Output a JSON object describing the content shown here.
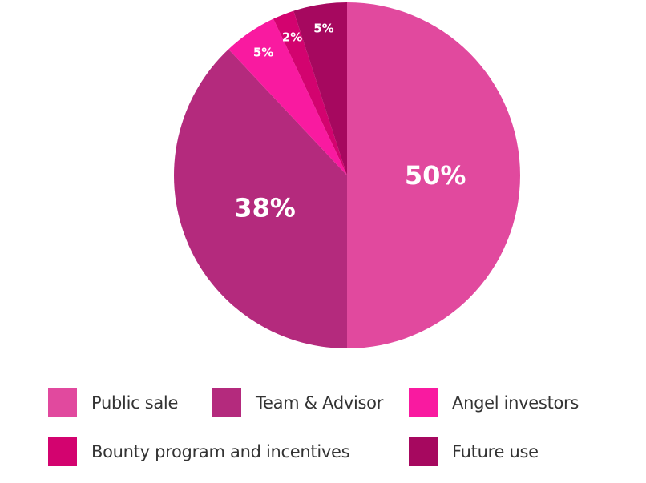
{
  "chart_data": {
    "type": "pie",
    "title": "",
    "slices": [
      {
        "name": "Public sale",
        "value": 50,
        "label": "50%",
        "color": "#e1499e"
      },
      {
        "name": "Team & Advisor",
        "value": 38,
        "label": "38%",
        "color": "#b42a7d"
      },
      {
        "name": "Angel investors",
        "value": 5,
        "label": "5%",
        "color": "#f91aa0"
      },
      {
        "name": "Bounty program and incentives",
        "value": 2,
        "label": "2%",
        "color": "#d3036f"
      },
      {
        "name": "Future use",
        "value": 5,
        "label": "5%",
        "color": "#a6085f"
      }
    ],
    "legend_placement": "bottom"
  },
  "legend": {
    "items": [
      {
        "label": "Public sale",
        "color": "#e1499e"
      },
      {
        "label": "Team & Advisor",
        "color": "#b42a7d"
      },
      {
        "label": "Angel investors",
        "color": "#f91aa0"
      },
      {
        "label": "Bounty program and incentives",
        "color": "#d3036f"
      },
      {
        "label": "Future use",
        "color": "#a6085f"
      }
    ]
  }
}
